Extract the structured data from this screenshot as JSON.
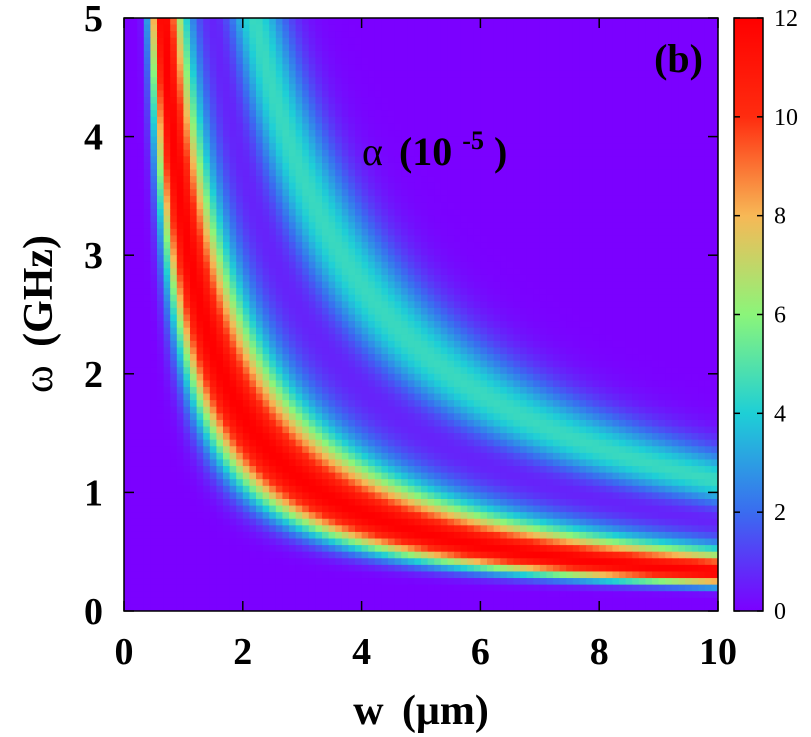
{
  "chart_data": {
    "type": "heatmap",
    "panel_label": "(b)",
    "annotation": {
      "symbol": "α",
      "prefix": "(10",
      "exponent": "-5",
      "suffix": ")"
    },
    "xlabel": {
      "symbol": "w",
      "unit": "(μm)"
    },
    "ylabel": {
      "symbol": "ω",
      "unit": "(GHz)"
    },
    "xlim": [
      0,
      10
    ],
    "ylim": [
      0,
      5
    ],
    "xticks": [
      0,
      2,
      4,
      6,
      8,
      10
    ],
    "yticks": [
      0,
      1,
      2,
      3,
      4,
      5
    ],
    "colorbar": {
      "range": [
        0,
        12
      ],
      "ticks": [
        0,
        2,
        4,
        6,
        8,
        10,
        12
      ],
      "colormap": [
        "#7b00ff",
        "#3a6cf0",
        "#1ecfd6",
        "#8bf57a",
        "#f7b856",
        "#ff2c0f",
        "#ff0000"
      ]
    },
    "ridge": {
      "description_values": "alpha peaks along omega ≈ 3.3 / w (GHz·μm); secondary band near omega ≈ 8.5 / w",
      "peak_value": 12
    }
  }
}
